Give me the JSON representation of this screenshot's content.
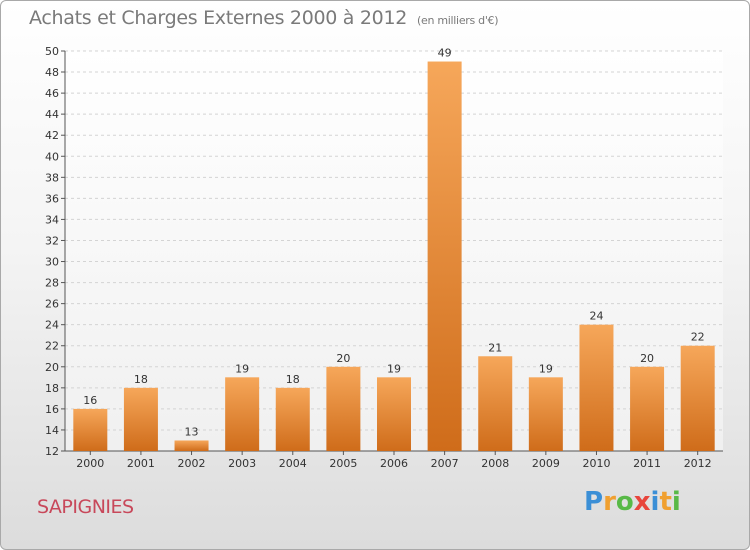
{
  "header": {
    "title": "Achats et Charges Externes 2000 à 2012",
    "subtitle": "(en milliers d'€)"
  },
  "commune": "SAPIGNIES",
  "logo": {
    "letters": [
      "P",
      "r",
      "o",
      "x",
      "i",
      "t",
      "i"
    ],
    "colors": [
      "#3b8fd6",
      "#f0a030",
      "#58b947",
      "#e8453c",
      "#3b8fd6",
      "#f0a030",
      "#58b947"
    ]
  },
  "chart_data": {
    "type": "bar",
    "title": "Achats et Charges Externes 2000 à 2012",
    "subtitle": "(en milliers d'€)",
    "categories": [
      "2000",
      "2001",
      "2002",
      "2003",
      "2004",
      "2005",
      "2006",
      "2007",
      "2008",
      "2009",
      "2010",
      "2011",
      "2012"
    ],
    "values": [
      16,
      18,
      13,
      19,
      18,
      20,
      19,
      49,
      21,
      19,
      24,
      20,
      22
    ],
    "ylim": [
      12,
      50
    ],
    "yticks": [
      12,
      14,
      16,
      18,
      20,
      22,
      24,
      26,
      28,
      30,
      32,
      34,
      36,
      38,
      40,
      42,
      44,
      46,
      48,
      50
    ],
    "xlabel": "",
    "ylabel": "",
    "grid": true,
    "bar_color": "#f0a050"
  }
}
